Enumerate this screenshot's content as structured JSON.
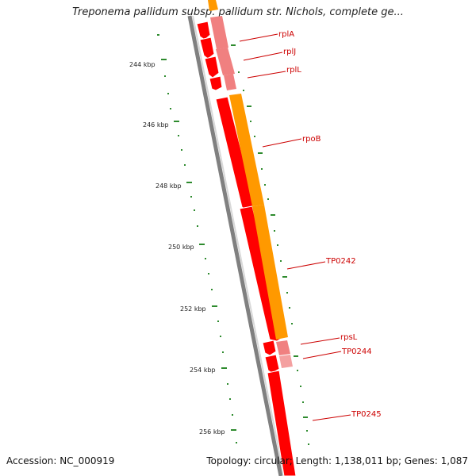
{
  "title": "Treponema pallidum subsp. pallidum str. Nichols, complete ge...",
  "footer": {
    "accession": "Accession: NC_000919",
    "stats": "Topology: circular; Length: 1,138,011 bp; Genes: 1,087"
  },
  "colors": {
    "backbone": "#808080",
    "gene_forward": "#ff0000",
    "gene_light": "#f08080",
    "cds_orange": "#ff9900",
    "rna_pink": "#f4a0a0",
    "tick": "#2e8b2e",
    "label": "#cc0000"
  },
  "ticks": [
    "244 kbp",
    "246 kbp",
    "248 kbp",
    "250 kbp",
    "252 kbp",
    "254 kbp",
    "256 kbp"
  ],
  "gene_labels": [
    "rplA",
    "rplJ",
    "rplL",
    "rpoB",
    "TP0242",
    "rpsL",
    "TP0244",
    "TP0245"
  ]
}
